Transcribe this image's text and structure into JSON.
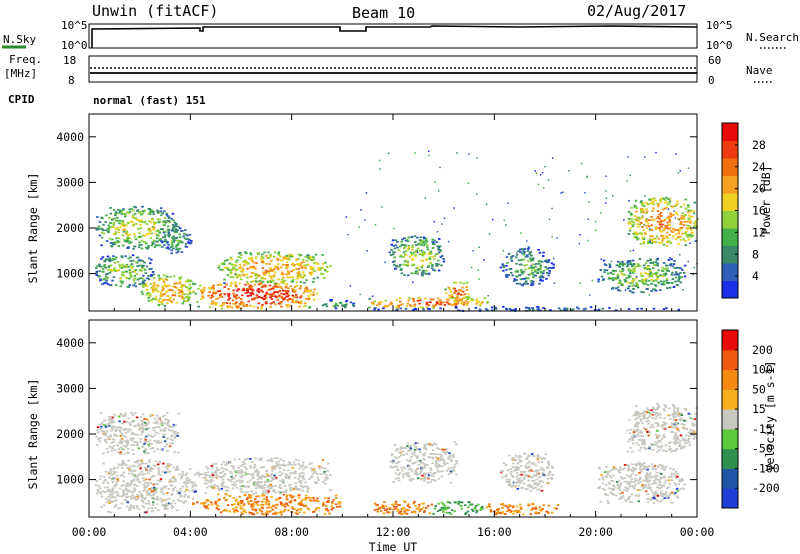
{
  "header": {
    "station": "Unwin (fitACF)",
    "beam": "Beam 10",
    "date": "02/Aug/2017"
  },
  "sky_panel": {
    "left_label": "N.Sky",
    "right_label": "N.Search",
    "left_ticks": [
      "10^5",
      "10^0"
    ],
    "right_ticks": [
      "10^5",
      "10^0"
    ]
  },
  "freq_panel": {
    "left_label_line1": "Freq.",
    "left_label_line2": "[MHz]",
    "right_label": "Nave",
    "left_ticks": [
      "18",
      "8"
    ],
    "right_ticks": [
      "60",
      "0"
    ]
  },
  "cpid": {
    "label": "CPID",
    "value": "normal (fast) 151"
  },
  "x_axis": {
    "label": "Time UT",
    "ticks": [
      "00:00",
      "04:00",
      "08:00",
      "12:00",
      "16:00",
      "20:00",
      "00:00"
    ]
  },
  "chart_data": [
    {
      "type": "heatmap",
      "name": "power",
      "ylabel": "Slant Range [km]",
      "ylim": [
        180,
        4500
      ],
      "y_ticks": [
        1000,
        2000,
        3000,
        4000
      ],
      "xlim_hours": [
        0,
        24
      ],
      "colorbar": {
        "label": "Power [dB]",
        "ticks": [
          4,
          8,
          12,
          16,
          20,
          24,
          28
        ],
        "range": [
          0,
          32
        ],
        "colors": [
          "#1a2fe6",
          "#2f5fb8",
          "#3a8a6a",
          "#44b04a",
          "#8fd23a",
          "#f0d020",
          "#f5a020",
          "#f07010",
          "#ee3a10",
          "#e60a0a"
        ]
      },
      "echo_regions": [
        {
          "t0": 0.2,
          "t1": 3.5,
          "r0": 1550,
          "r1": 2500,
          "level": 17
        },
        {
          "t0": 0.2,
          "t1": 2.5,
          "r0": 700,
          "r1": 1450,
          "level": 15
        },
        {
          "t0": 2.8,
          "t1": 4.0,
          "r0": 1450,
          "r1": 2050,
          "level": 12
        },
        {
          "t0": 2.0,
          "t1": 4.2,
          "r0": 300,
          "r1": 1000,
          "level": 22
        },
        {
          "t0": 4.2,
          "t1": 9.0,
          "r0": 250,
          "r1": 850,
          "level": 29
        },
        {
          "t0": 5.0,
          "t1": 9.5,
          "r0": 800,
          "r1": 1500,
          "level": 22
        },
        {
          "t0": 9.0,
          "t1": 10.5,
          "r0": 250,
          "r1": 450,
          "level": 12
        },
        {
          "t0": 11.0,
          "t1": 15.8,
          "r0": 250,
          "r1": 500,
          "level": 26
        },
        {
          "t0": 11.8,
          "t1": 14.0,
          "r0": 950,
          "r1": 1850,
          "level": 16
        },
        {
          "t0": 14.0,
          "t1": 15.0,
          "r0": 350,
          "r1": 850,
          "level": 25
        },
        {
          "t0": 16.2,
          "t1": 18.3,
          "r0": 750,
          "r1": 1600,
          "level": 12
        },
        {
          "t0": 20.0,
          "t1": 23.5,
          "r0": 600,
          "r1": 1350,
          "level": 15
        },
        {
          "t0": 21.2,
          "t1": 24.0,
          "r0": 1600,
          "r1": 2700,
          "level": 23
        },
        {
          "t0": 10.0,
          "t1": 24.0,
          "r0": 180,
          "r1": 300,
          "level": 6
        }
      ]
    },
    {
      "type": "heatmap",
      "name": "velocity",
      "ylabel": "Slant Range [km]",
      "ylim": [
        180,
        4500
      ],
      "y_ticks": [
        1000,
        2000,
        3000,
        4000
      ],
      "xlim_hours": [
        0,
        24
      ],
      "colorbar": {
        "label": "Velocity [m s-1]",
        "ticks": [
          200,
          100,
          50,
          15,
          -15,
          -50,
          -100,
          -200
        ],
        "colors": [
          "#1f3fd6",
          "#1f56a8",
          "#2f8f4f",
          "#5cc83c",
          "#c8c8c0",
          "#f5b020",
          "#f58a10",
          "#f05a10",
          "#e60a0a"
        ]
      },
      "echo_regions": [
        {
          "t0": 0.2,
          "t1": 3.5,
          "r0": 1550,
          "r1": 2500,
          "cls": "slow"
        },
        {
          "t0": 0.2,
          "t1": 4.2,
          "r0": 300,
          "r1": 1450,
          "cls": "slow"
        },
        {
          "t0": 4.2,
          "t1": 9.5,
          "r0": 700,
          "r1": 1500,
          "cls": "slow"
        },
        {
          "t0": 4.0,
          "t1": 10.0,
          "r0": 250,
          "r1": 700,
          "cls": "away"
        },
        {
          "t0": 11.8,
          "t1": 14.5,
          "r0": 950,
          "r1": 1850,
          "cls": "slow"
        },
        {
          "t0": 11.0,
          "t1": 13.5,
          "r0": 250,
          "r1": 550,
          "cls": "away"
        },
        {
          "t0": 13.5,
          "t1": 15.5,
          "r0": 250,
          "r1": 550,
          "cls": "toward"
        },
        {
          "t0": 15.5,
          "t1": 18.5,
          "r0": 250,
          "r1": 500,
          "cls": "away"
        },
        {
          "t0": 16.2,
          "t1": 18.3,
          "r0": 750,
          "r1": 1600,
          "cls": "slow"
        },
        {
          "t0": 20.0,
          "t1": 23.5,
          "r0": 500,
          "r1": 1400,
          "cls": "slow"
        },
        {
          "t0": 21.2,
          "t1": 24.0,
          "r0": 1600,
          "r1": 2700,
          "cls": "slow"
        }
      ]
    }
  ],
  "colors": {
    "axis": "#000000",
    "background": "#ffffff"
  }
}
